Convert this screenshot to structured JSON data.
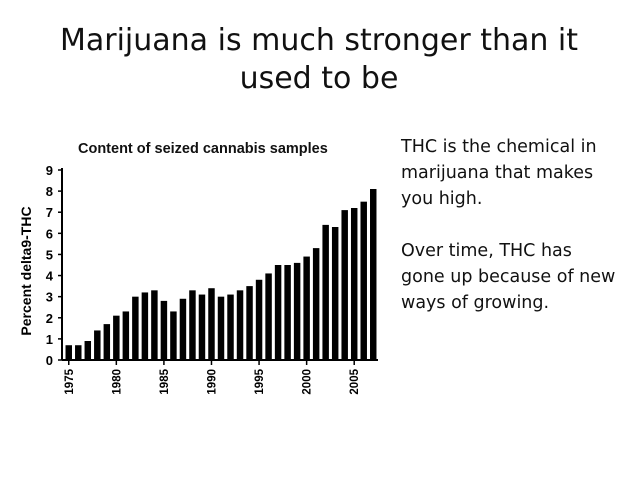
{
  "slide": {
    "title_line1": "Marijuana is much stronger than it",
    "title_line2": "used to be",
    "note_para1": "THC is the chemical in marijuana that makes you high.",
    "note_para2": "Over time, THC has gone up because of new ways of growing."
  },
  "chart_data": {
    "type": "bar",
    "title": "Content of seized cannabis samples",
    "xlabel": "",
    "ylabel": "Percent delta9-THC",
    "x": [
      1975,
      1976,
      1977,
      1978,
      1979,
      1980,
      1981,
      1982,
      1983,
      1984,
      1985,
      1986,
      1987,
      1988,
      1989,
      1990,
      1991,
      1992,
      1993,
      1994,
      1995,
      1996,
      1997,
      1998,
      1999,
      2000,
      2001,
      2002,
      2003,
      2004,
      2005,
      2006,
      2007
    ],
    "values": [
      0.7,
      0.7,
      0.9,
      1.4,
      1.7,
      2.1,
      2.3,
      3.0,
      3.2,
      3.3,
      2.8,
      2.3,
      2.9,
      3.3,
      3.1,
      3.4,
      3.0,
      3.1,
      3.3,
      3.5,
      3.8,
      4.1,
      4.5,
      4.5,
      4.6,
      4.9,
      5.3,
      6.4,
      6.3,
      7.1,
      7.2,
      7.5,
      8.1
    ],
    "xticks": [
      "1975",
      "1980",
      "1985",
      "1990",
      "1995",
      "2000",
      "2005"
    ],
    "yticks": [
      "0",
      "1",
      "2",
      "3",
      "4",
      "5",
      "6",
      "7",
      "8",
      "9"
    ],
    "ylim": [
      0,
      9
    ],
    "bar_color": "#000000",
    "grid": false
  }
}
